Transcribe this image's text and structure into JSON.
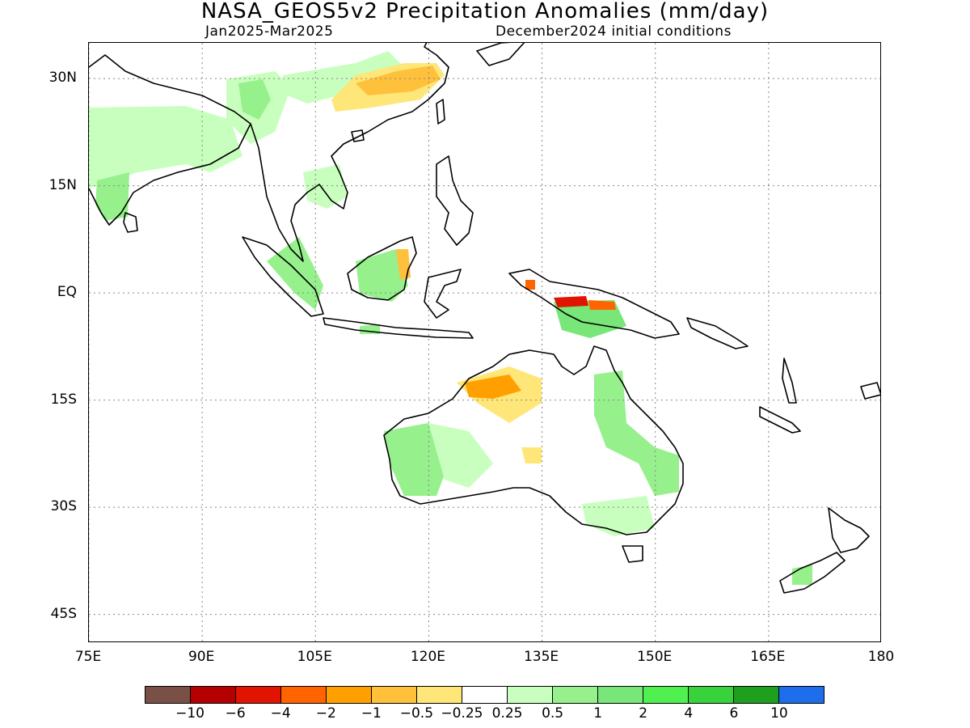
{
  "header": {
    "title": "NASA_GEOS5v2 Precipitation Anomalies (mm/day)",
    "period": "Jan2025-Mar2025",
    "init": "December2024 initial conditions"
  },
  "map": {
    "lon_range": [
      75,
      180
    ],
    "lat_range": [
      -49,
      35
    ],
    "lat_ticks": [
      {
        "lat": 30,
        "label": "30N"
      },
      {
        "lat": 15,
        "label": "15N"
      },
      {
        "lat": 0,
        "label": "EQ"
      },
      {
        "lat": -15,
        "label": "15S"
      },
      {
        "lat": -30,
        "label": "30S"
      },
      {
        "lat": -45,
        "label": "45S"
      }
    ],
    "lon_ticks": [
      {
        "lon": 75,
        "label": "75E"
      },
      {
        "lon": 90,
        "label": "90E"
      },
      {
        "lon": 105,
        "label": "105E"
      },
      {
        "lon": 120,
        "label": "120E"
      },
      {
        "lon": 135,
        "label": "135E"
      },
      {
        "lon": 150,
        "label": "150E"
      },
      {
        "lon": 165,
        "label": "165E"
      },
      {
        "lon": 180,
        "label": "180"
      }
    ],
    "grid": "dotted"
  },
  "colorbar": {
    "colors": [
      "#7a5046",
      "#b40000",
      "#e01400",
      "#ff6400",
      "#ffa000",
      "#ffc03c",
      "#ffe678",
      "#ffffff",
      "#c8ffbe",
      "#96f08c",
      "#78e678",
      "#50f050",
      "#37d23c",
      "#1ea01e",
      "#1e6eeb"
    ],
    "labels": [
      "-10",
      "-6",
      "-4",
      "-2",
      "-1",
      "-0.5",
      "-0.25",
      "0.25",
      "0.5",
      "1",
      "2",
      "4",
      "6",
      "10"
    ]
  }
}
